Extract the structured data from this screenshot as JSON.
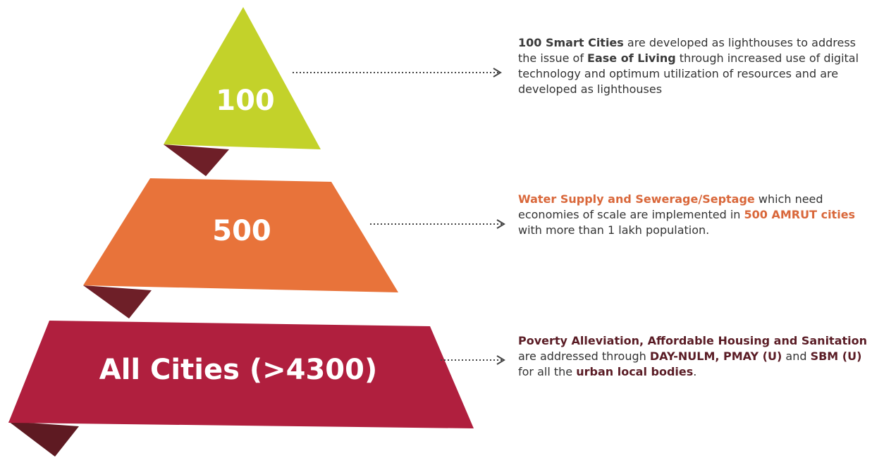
{
  "tiers": [
    {
      "label": "100",
      "description": [
        {
          "text": "100 Smart Cities",
          "bold": true
        },
        {
          "text": " are developed as lighthouses to address the issue of ",
          "bold": false
        },
        {
          "text": "Ease of Living",
          "bold": true
        },
        {
          "text": " through increased use of digital technology and optimum utilization of resources and are developed as lighthouses",
          "bold": false
        }
      ]
    },
    {
      "label": "500",
      "description": [
        {
          "text": "Water Supply and Sewerage/Septage",
          "bold": true
        },
        {
          "text": " which need economies of scale are implemented in ",
          "bold": false
        },
        {
          "text": "500 AMRUT cities",
          "bold": true
        },
        {
          "text": " with more than 1 lakh population.",
          "bold": false
        }
      ]
    },
    {
      "label": "All Cities (>4300)",
      "description": [
        {
          "text": "Poverty Alleviation, Affordable Housing and Sanitation",
          "bold": true
        },
        {
          "text": " are addressed through ",
          "bold": false
        },
        {
          "text": "DAY-NULM, PMAY (U)",
          "bold": true
        },
        {
          "text": " and ",
          "bold": false
        },
        {
          "text": "SBM (U)",
          "bold": true
        },
        {
          "text": " for all the ",
          "bold": false
        },
        {
          "text": "urban local bodies",
          "bold": true
        },
        {
          "text": ".",
          "bold": false
        }
      ]
    }
  ]
}
